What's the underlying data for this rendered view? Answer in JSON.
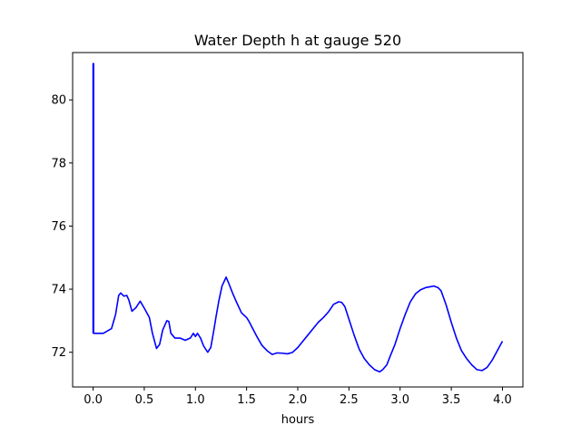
{
  "chart_data": {
    "type": "line",
    "title": "Water Depth h at gauge 520",
    "xlabel": "hours",
    "ylabel": "",
    "xlim": [
      -0.2,
      4.2
    ],
    "ylim": [
      70.9,
      81.5
    ],
    "xticks": [
      0.0,
      0.5,
      1.0,
      1.5,
      2.0,
      2.5,
      3.0,
      3.5,
      4.0
    ],
    "xtick_labels": [
      "0.0",
      "0.5",
      "1.0",
      "1.5",
      "2.0",
      "2.5",
      "3.0",
      "3.5",
      "4.0"
    ],
    "yticks": [
      72,
      74,
      76,
      78,
      80
    ],
    "ytick_labels": [
      "72",
      "74",
      "76",
      "78",
      "80"
    ],
    "grid": false,
    "series": [
      {
        "color": "#0000ff",
        "x": [
          0.0,
          0.0,
          0.005,
          0.005,
          0.1,
          0.18,
          0.22,
          0.25,
          0.27,
          0.3,
          0.33,
          0.35,
          0.38,
          0.42,
          0.46,
          0.5,
          0.55,
          0.58,
          0.62,
          0.65,
          0.68,
          0.72,
          0.74,
          0.76,
          0.8,
          0.85,
          0.9,
          0.95,
          0.98,
          1.0,
          1.02,
          1.05,
          1.08,
          1.12,
          1.15,
          1.18,
          1.2,
          1.23,
          1.26,
          1.3,
          1.33,
          1.36,
          1.4,
          1.45,
          1.5,
          1.52,
          1.56,
          1.6,
          1.65,
          1.7,
          1.75,
          1.8,
          1.85,
          1.9,
          1.95,
          2.0,
          2.05,
          2.1,
          2.15,
          2.2,
          2.25,
          2.3,
          2.35,
          2.4,
          2.43,
          2.46,
          2.5,
          2.55,
          2.6,
          2.65,
          2.7,
          2.75,
          2.8,
          2.83,
          2.87,
          2.9,
          2.95,
          3.0,
          3.05,
          3.1,
          3.15,
          3.2,
          3.25,
          3.3,
          3.33,
          3.37,
          3.4,
          3.45,
          3.5,
          3.55,
          3.6,
          3.65,
          3.7,
          3.75,
          3.8,
          3.85,
          3.9,
          3.95,
          4.0
        ],
        "y": [
          72.6,
          81.15,
          81.15,
          72.6,
          72.6,
          72.75,
          73.2,
          73.8,
          73.88,
          73.78,
          73.8,
          73.65,
          73.3,
          73.42,
          73.62,
          73.4,
          73.1,
          72.6,
          72.12,
          72.25,
          72.7,
          73.0,
          72.98,
          72.6,
          72.45,
          72.45,
          72.38,
          72.45,
          72.6,
          72.5,
          72.6,
          72.45,
          72.2,
          72.0,
          72.15,
          72.7,
          73.1,
          73.65,
          74.1,
          74.38,
          74.15,
          73.9,
          73.6,
          73.25,
          73.1,
          73.0,
          72.75,
          72.5,
          72.22,
          72.05,
          71.93,
          71.98,
          71.97,
          71.95,
          72.0,
          72.15,
          72.35,
          72.55,
          72.75,
          72.95,
          73.1,
          73.28,
          73.52,
          73.6,
          73.58,
          73.45,
          73.05,
          72.55,
          72.1,
          71.8,
          71.6,
          71.45,
          71.38,
          71.45,
          71.6,
          71.85,
          72.25,
          72.75,
          73.2,
          73.6,
          73.85,
          73.98,
          74.05,
          74.08,
          74.1,
          74.05,
          73.95,
          73.5,
          72.95,
          72.45,
          72.05,
          71.8,
          71.6,
          71.45,
          71.42,
          71.52,
          71.75,
          72.05,
          72.35
        ]
      }
    ]
  }
}
